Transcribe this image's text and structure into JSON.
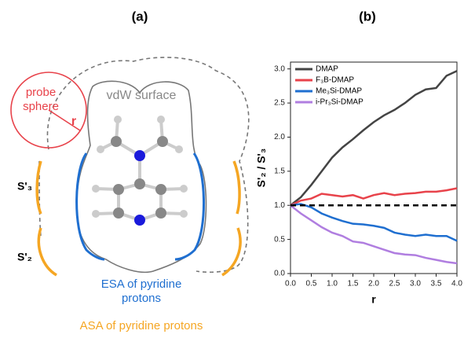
{
  "panels": {
    "a": "(a)",
    "b": "(b)"
  },
  "diagram": {
    "probe_label": [
      "probe",
      "sphere"
    ],
    "radius_label": "r",
    "vdw_label": "vdW surface",
    "s3_label": "S'₃",
    "s2_label": "S'₂",
    "esa_label": [
      "ESA of pyridine",
      "protons"
    ],
    "asa_label": "ASA of pyridine protons"
  },
  "chart_data": {
    "type": "line",
    "x_label": "r",
    "y_label": "S'₂ / S'₃",
    "x": [
      0,
      0.25,
      0.5,
      0.75,
      1.0,
      1.25,
      1.5,
      1.75,
      2.0,
      2.25,
      2.5,
      2.75,
      3.0,
      3.25,
      3.5,
      3.75,
      4.0
    ],
    "series": [
      {
        "name": "DMAP",
        "color": "#444444",
        "values": [
          1.0,
          1.12,
          1.3,
          1.5,
          1.7,
          1.85,
          1.97,
          2.1,
          2.22,
          2.32,
          2.4,
          2.5,
          2.62,
          2.7,
          2.72,
          2.9,
          2.97
        ]
      },
      {
        "name": "F₃B-DMAP",
        "color": "#e8434b",
        "values": [
          1.0,
          1.07,
          1.1,
          1.17,
          1.15,
          1.13,
          1.15,
          1.1,
          1.15,
          1.18,
          1.15,
          1.17,
          1.18,
          1.2,
          1.2,
          1.22,
          1.25
        ]
      },
      {
        "name": "Me₃Si-DMAP",
        "color": "#1f6fd0",
        "values": [
          1.0,
          1.02,
          0.97,
          0.88,
          0.82,
          0.77,
          0.73,
          0.72,
          0.7,
          0.67,
          0.6,
          0.57,
          0.55,
          0.57,
          0.55,
          0.55,
          0.48
        ]
      },
      {
        "name": "i-Pr₃Si-DMAP",
        "color": "#b07ee0",
        "values": [
          1.0,
          0.88,
          0.78,
          0.68,
          0.6,
          0.55,
          0.47,
          0.45,
          0.4,
          0.35,
          0.3,
          0.28,
          0.27,
          0.23,
          0.2,
          0.17,
          0.15
        ]
      }
    ],
    "hline": 1.0,
    "xlim": [
      0,
      4
    ],
    "ylim": [
      0,
      3.1
    ],
    "xticks": [
      {
        "value": 0,
        "label": "0.0"
      },
      {
        "value": 0.5,
        "label": "0.5"
      },
      {
        "value": 1,
        "label": "1.0"
      },
      {
        "value": 1.5,
        "label": "1.5"
      },
      {
        "value": 2,
        "label": "2.0"
      },
      {
        "value": 2.5,
        "label": "2.5"
      },
      {
        "value": 3,
        "label": "3.0"
      },
      {
        "value": 3.5,
        "label": "3.5"
      },
      {
        "value": 4,
        "label": "4.0"
      }
    ],
    "yticks": [
      {
        "value": 0,
        "label": "0.0"
      },
      {
        "value": 0.5,
        "label": "0.5"
      },
      {
        "value": 1,
        "label": "1.0"
      },
      {
        "value": 1.5,
        "label": "1.5"
      },
      {
        "value": 2,
        "label": "2.0"
      },
      {
        "value": 2.5,
        "label": "2.5"
      },
      {
        "value": 3,
        "label": "3.0"
      }
    ]
  }
}
